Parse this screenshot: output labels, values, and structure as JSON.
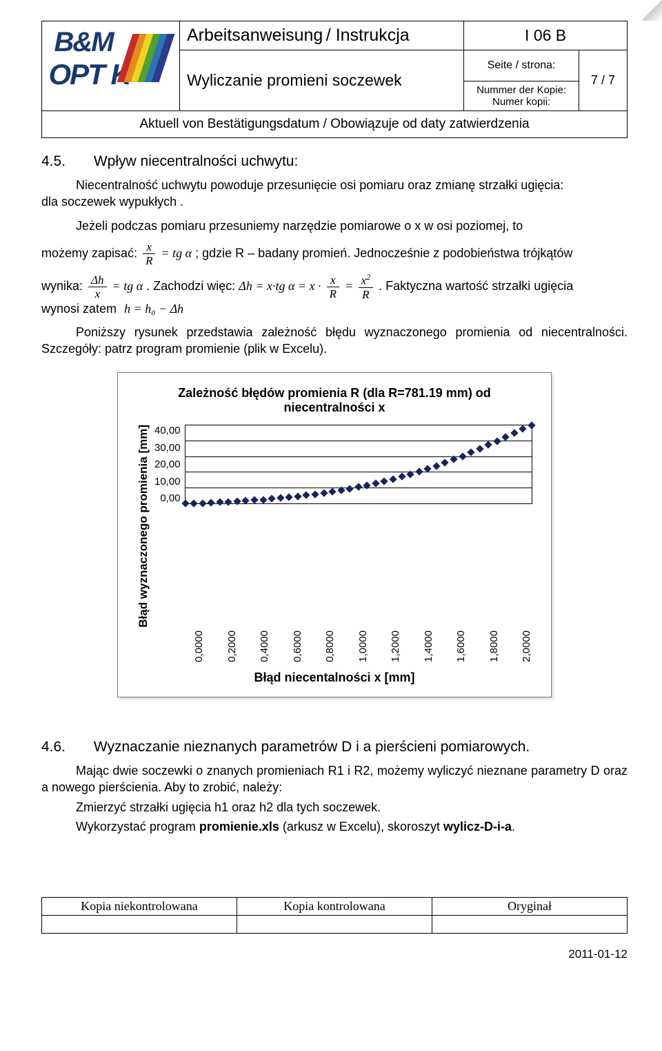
{
  "header": {
    "title_de": "Arbeitsanweisung",
    "title_pl": "Instrukcja",
    "subtitle": "Wyliczanie promieni soczewek",
    "doc_code": "I 06 B",
    "seite_label": "Seite / strona:",
    "page_num": "7 / 7",
    "nummer_label_1": "Nummer der Kopie:",
    "nummer_label_2": "Numer kopii:",
    "aktuell": "Aktuell von Bestätigungsdatum / Obowiązuje od daty zatwierdzenia"
  },
  "logo": {
    "bm": "B&M",
    "optik": "OPT  K",
    "swatches": [
      "#c82a2a",
      "#e58a1e",
      "#f2d31f",
      "#52a031",
      "#2d74b5",
      "#2a3c8a"
    ]
  },
  "s45": {
    "num": "4.5.",
    "title": "Wpływ niecentralności uchwytu:",
    "p1_a": "Niecentralność uchwytu powoduje przesunięcie osi pomiaru oraz zmianę strzałki ugięcia:",
    "p1_b": "dla soczewek wypukłych .",
    "p2_a": "Jeżeli podczas pomiaru przesuniemy narzędzie pomiarowe o x w osi poziomej, to",
    "p2_b": "możemy zapisać:",
    "p2_c": "; gdzie R – badany promień. Jednocześnie z podobieństwa trójkątów",
    "p3_a": "wynika:",
    "p3_b": ". Zachodzi więc:",
    "p3_c": ". Faktyczna wartość strzałki ugięcia",
    "p3_d": "wynosi zatem",
    "p4": "Poniższy rysunek przedstawia zależność błędu wyznaczonego promienia od niecentralności. Szczegóły: patrz program promienie (plik w Excelu).",
    "eq_tg": "= tg α",
    "eq_dh_eq": "Δh = x·tg α = x ·",
    "eq_h_eq": "h = h₀ − Δh"
  },
  "chart": {
    "title": "Zależność błędów promienia R (dla R=781.19 mm) od niecentralności x",
    "ylabel": "Błąd wyznaczonego promienia [mm]",
    "xlabel": "Błąd niecentalności x [mm]",
    "y_ticks": [
      "40,00",
      "30,00",
      "20,00",
      "10,00",
      "0,00"
    ],
    "x_ticks": [
      "0,0000",
      "0,2000",
      "0,4000",
      "0,6000",
      "0,8000",
      "1,0000",
      "1,2000",
      "1,4000",
      "1,6000",
      "1,8000",
      "2,0000"
    ],
    "ymax": 50,
    "grid_y": [
      10,
      20,
      30,
      40
    ],
    "points": [
      [
        0.0,
        0.0
      ],
      [
        0.05,
        0.2
      ],
      [
        0.1,
        0.4
      ],
      [
        0.15,
        0.6
      ],
      [
        0.2,
        0.9
      ],
      [
        0.25,
        1.2
      ],
      [
        0.3,
        1.5
      ],
      [
        0.35,
        1.8
      ],
      [
        0.4,
        2.2
      ],
      [
        0.45,
        2.6
      ],
      [
        0.5,
        3.1
      ],
      [
        0.55,
        3.6
      ],
      [
        0.6,
        4.1
      ],
      [
        0.65,
        4.7
      ],
      [
        0.7,
        5.4
      ],
      [
        0.75,
        6.1
      ],
      [
        0.8,
        6.9
      ],
      [
        0.85,
        7.7
      ],
      [
        0.9,
        8.6
      ],
      [
        0.95,
        9.6
      ],
      [
        1.0,
        10.7
      ],
      [
        1.05,
        11.8
      ],
      [
        1.1,
        13.1
      ],
      [
        1.15,
        14.4
      ],
      [
        1.2,
        15.8
      ],
      [
        1.25,
        17.3
      ],
      [
        1.3,
        18.9
      ],
      [
        1.35,
        20.6
      ],
      [
        1.4,
        22.4
      ],
      [
        1.45,
        24.3
      ],
      [
        1.5,
        26.2
      ],
      [
        1.55,
        28.3
      ],
      [
        1.6,
        30.5
      ],
      [
        1.65,
        32.8
      ],
      [
        1.7,
        35.1
      ],
      [
        1.75,
        37.6
      ],
      [
        1.8,
        40.2
      ],
      [
        1.85,
        42.8
      ],
      [
        1.9,
        45.5
      ],
      [
        1.95,
        48.0
      ],
      [
        2.0,
        50.0
      ]
    ],
    "marker_color": "#17245c"
  },
  "s46": {
    "num": "4.6.",
    "title": "Wyznaczanie nieznanych parametrów D i a pierścieni pomiarowych.",
    "p1": "Mając dwie soczewki o znanych promieniach R1 i R2, możemy wyliczyć nieznane parametry D oraz a nowego pierścienia. Aby to zrobić, należy:",
    "li1": "Zmierzyć strzałki ugięcia h1 oraz h2 dla tych soczewek.",
    "li2a": "Wykorzystać program ",
    "li2b": "promienie.xls",
    "li2c": " (arkusz w Excelu), skoroszyt ",
    "li2d": "wylicz-D-i-a",
    "li2e": "."
  },
  "footer": {
    "c1": "Kopia niekontrolowana",
    "c2": "Kopia kontrolowana",
    "c3": "Oryginał",
    "date": "2011-01-12"
  }
}
